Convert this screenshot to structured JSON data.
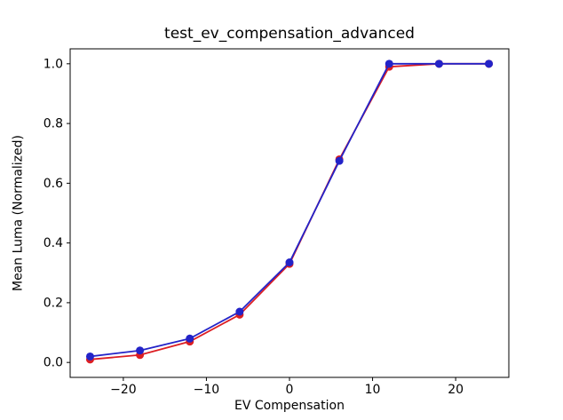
{
  "figure": {
    "title": "test_ev_compensation_advanced",
    "xlabel": "EV Compensation",
    "ylabel": "Mean Luma (Normalized)"
  },
  "chart_data": {
    "type": "line",
    "title": "test_ev_compensation_advanced",
    "xlabel": "EV Compensation",
    "ylabel": "Mean Luma (Normalized)",
    "x": [
      -24,
      -18,
      -12,
      -6,
      0,
      6,
      12,
      18,
      24
    ],
    "series": [
      {
        "name": "red-series",
        "color": "#DC1E23",
        "marker": "o",
        "values": [
          0.01,
          0.025,
          0.07,
          0.16,
          0.33,
          0.68,
          0.99,
          1.0,
          1.0
        ]
      },
      {
        "name": "blue-series",
        "color": "#2323C8",
        "marker": "o",
        "values": [
          0.02,
          0.04,
          0.08,
          0.17,
          0.335,
          0.675,
          1.0,
          1.0,
          1.0
        ]
      }
    ],
    "xlim": [
      -26.4,
      26.4
    ],
    "ylim": [
      -0.05,
      1.05
    ],
    "xticks": {
      "values": [
        -20,
        -10,
        0,
        10,
        20
      ],
      "labels": [
        "−20",
        "−10",
        "0",
        "10",
        "20"
      ]
    },
    "yticks": {
      "values": [
        0.0,
        0.2,
        0.4,
        0.6,
        0.8,
        1.0
      ],
      "labels": [
        "0.0",
        "0.2",
        "0.4",
        "0.6",
        "0.8",
        "1.0"
      ]
    },
    "grid": false,
    "legend": null,
    "background": "#ffffff",
    "axes_color": "#000000"
  }
}
